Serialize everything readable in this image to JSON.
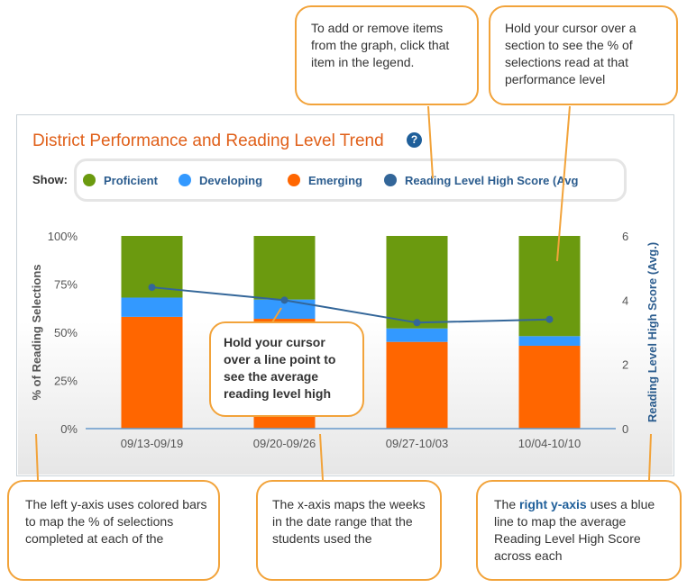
{
  "title": "District Performance and Reading Level Trend",
  "help_icon": "?",
  "legend": {
    "show_label": "Show:",
    "items": [
      {
        "label": "Proficient",
        "color": "#6b9a0f"
      },
      {
        "label": "Developing",
        "color": "#3399ff"
      },
      {
        "label": "Emerging",
        "color": "#ff6600"
      },
      {
        "label": "Reading Level High Score (Avg",
        "color": "#336699"
      }
    ]
  },
  "chart_data": {
    "type": "bar",
    "stacked": true,
    "categories": [
      "09/13-09/19",
      "09/20-09/26",
      "09/27-10/03",
      "10/04-10/10"
    ],
    "series": [
      {
        "name": "Emerging",
        "color": "#ff6600",
        "values": [
          58,
          57,
          45,
          43
        ]
      },
      {
        "name": "Developing",
        "color": "#3399ff",
        "values": [
          10,
          10,
          7,
          5
        ]
      },
      {
        "name": "Proficient",
        "color": "#6b9a0f",
        "values": [
          32,
          33,
          48,
          52
        ]
      }
    ],
    "line_series": {
      "name": "Reading Level High Score (Avg.)",
      "color": "#336699",
      "axis": "right",
      "values": [
        4.4,
        4.0,
        3.3,
        3.4
      ]
    },
    "ylabel": "% of Reading Selections",
    "y2label": "Reading Level High Score (Avg.)",
    "ylim": [
      0,
      100
    ],
    "y2lim": [
      0,
      6
    ],
    "yticks": [
      "0%",
      "25%",
      "50%",
      "75%",
      "100%"
    ],
    "y2ticks": [
      "0",
      "2",
      "4",
      "6"
    ]
  },
  "callouts": {
    "legend_tip": "To add or remove items from the graph, click that item in the legend.",
    "section_tip": "Hold your cursor over a section to see the % of selections read at that performance level",
    "point_tip": "Hold your cursor over a line point to see the average reading level high",
    "left_axis_tip": "The left y-axis uses colored bars to map the % of selections completed at each of the",
    "x_axis_tip": "The x-axis maps the weeks in the date range that the students used the",
    "right_axis_pre": "The ",
    "right_axis_em": "right y-axis",
    "right_axis_post": " uses a blue line to map the average Reading Level High Score across each"
  }
}
